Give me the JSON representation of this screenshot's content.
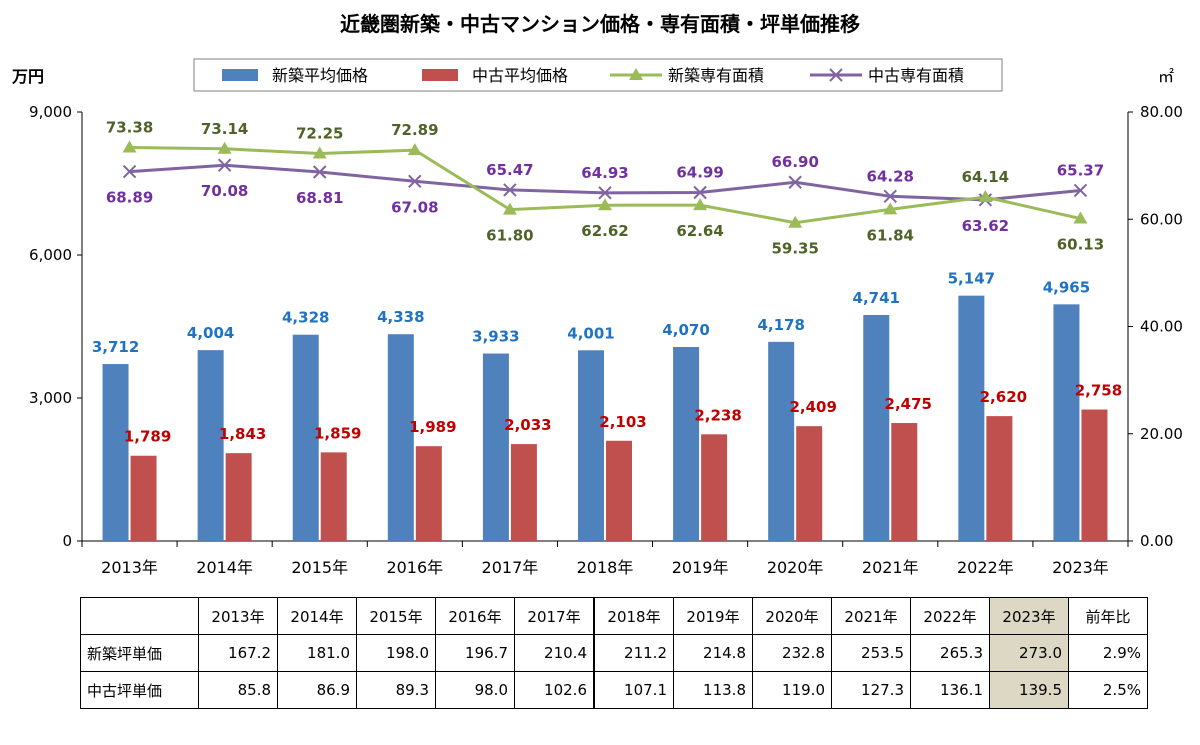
{
  "chart_data": {
    "type": "bar+line",
    "title": "近畿圏新築・中古マンション価格・専有面積・坪単価推移",
    "ylabel_left": "万円",
    "ylabel_right": "㎡",
    "ylim_left": [
      0,
      9000
    ],
    "ylim_right": [
      0,
      80
    ],
    "left_ticks": [
      "0",
      "3,000",
      "6,000",
      "9,000"
    ],
    "right_ticks": [
      "0.00",
      "20.00",
      "40.00",
      "60.00",
      "80.00"
    ],
    "categories": [
      "2013年",
      "2014年",
      "2015年",
      "2016年",
      "2017年",
      "2018年",
      "2019年",
      "2020年",
      "2021年",
      "2022年",
      "2023年"
    ],
    "series": [
      {
        "name": "新築平均価格",
        "type": "bar",
        "axis": "left",
        "color": "#4f81bd",
        "label_color": "#1f73c2",
        "values": [
          3712,
          4004,
          4328,
          4338,
          3933,
          4001,
          4070,
          4178,
          4741,
          5147,
          4965
        ],
        "labels": [
          "3,712",
          "4,004",
          "4,328",
          "4,338",
          "3,933",
          "4,001",
          "4,070",
          "4,178",
          "4,741",
          "5,147",
          "4,965"
        ]
      },
      {
        "name": "中古平均価格",
        "type": "bar",
        "axis": "left",
        "color": "#c0504d",
        "label_color": "#c00000",
        "values": [
          1789,
          1843,
          1859,
          1989,
          2033,
          2103,
          2238,
          2409,
          2475,
          2620,
          2758
        ],
        "labels": [
          "1,789",
          "1,843",
          "1,859",
          "1,989",
          "2,033",
          "2,103",
          "2,238",
          "2,409",
          "2,475",
          "2,620",
          "2,758"
        ]
      },
      {
        "name": "新築専有面積",
        "type": "line",
        "axis": "right",
        "color": "#9bbb59",
        "label_color": "#4f6228",
        "marker": "triangle",
        "values": [
          73.38,
          73.14,
          72.25,
          72.89,
          61.8,
          62.62,
          62.64,
          59.35,
          61.84,
          64.14,
          60.13
        ],
        "labels": [
          "73.38",
          "73.14",
          "72.25",
          "72.89",
          "61.80",
          "62.62",
          "62.64",
          "59.35",
          "61.84",
          "64.14",
          "60.13"
        ]
      },
      {
        "name": "中古専有面積",
        "type": "line",
        "axis": "right",
        "color": "#8064a2",
        "label_color": "#7030a0",
        "marker": "x",
        "values": [
          68.89,
          70.08,
          68.81,
          67.08,
          65.47,
          64.93,
          64.99,
          66.9,
          64.28,
          63.62,
          65.37
        ],
        "labels": [
          "68.89",
          "70.08",
          "68.81",
          "67.08",
          "65.47",
          "64.93",
          "64.99",
          "66.90",
          "64.28",
          "63.62",
          "65.37"
        ]
      }
    ],
    "legend": "top",
    "grid": false
  },
  "table": {
    "years": [
      "2013年",
      "2014年",
      "2015年",
      "2016年",
      "2017年",
      "2018年",
      "2019年",
      "2020年",
      "2021年",
      "2022年",
      "2023年"
    ],
    "yoy_header": "前年比",
    "rows": [
      {
        "label": "新築坪単価",
        "values": [
          "167.2",
          "181.0",
          "198.0",
          "196.7",
          "210.4",
          "211.2",
          "214.8",
          "232.8",
          "253.5",
          "265.3",
          "273.0"
        ],
        "yoy": "2.9%"
      },
      {
        "label": "中古坪単価",
        "values": [
          "85.8",
          "86.9",
          "89.3",
          "98.0",
          "102.6",
          "107.1",
          "113.8",
          "119.0",
          "127.3",
          "136.1",
          "139.5"
        ],
        "yoy": "2.5%"
      }
    ]
  }
}
